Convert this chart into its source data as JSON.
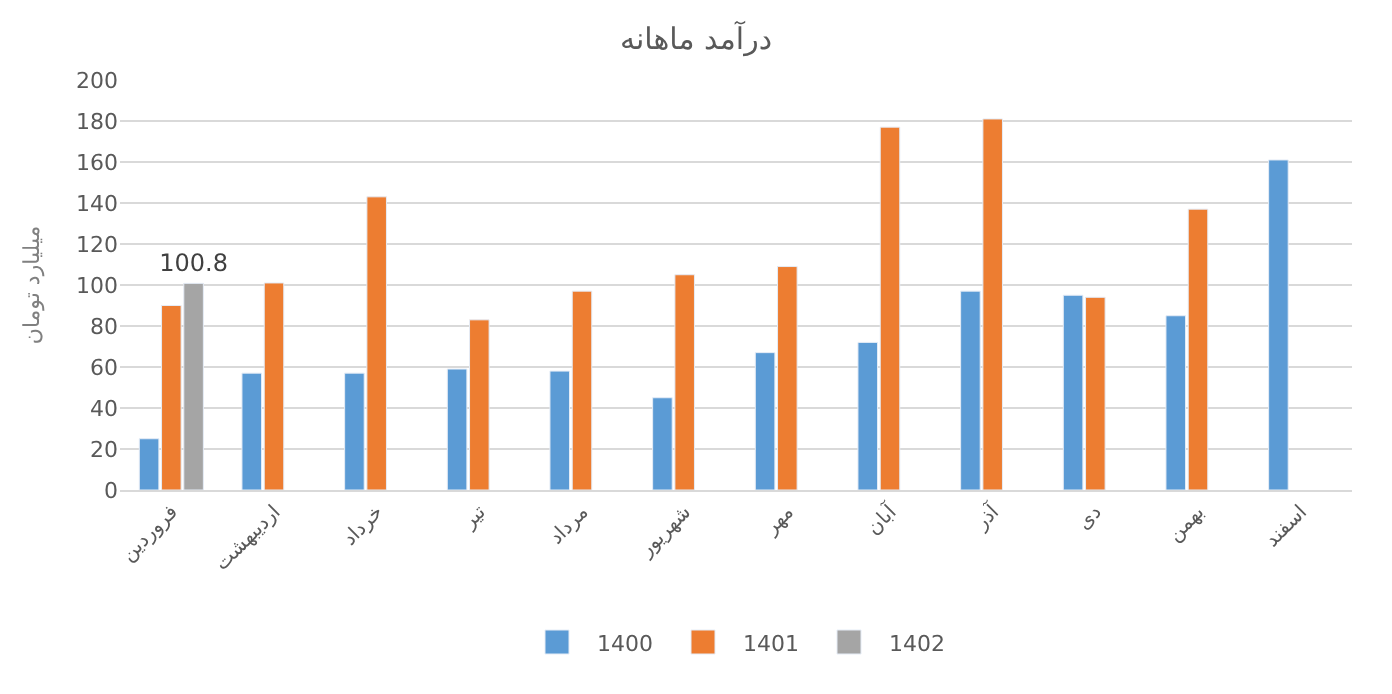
{
  "chart_data": {
    "type": "bar",
    "title": "درآمد ماهانه",
    "ylabel": "میلیارد تومان",
    "categories": [
      "فروردین",
      "اردیبهشت",
      "خرداد",
      "تیر",
      "مرداد",
      "شهریور",
      "مهر",
      "آبان",
      "آذر",
      "دی",
      "بهمن",
      "اسفند"
    ],
    "series": [
      {
        "name": "1400",
        "color": "#5b9bd5",
        "values": [
          25,
          57,
          57,
          59,
          58,
          45,
          67,
          72,
          97,
          95,
          85,
          161
        ]
      },
      {
        "name": "1401",
        "color": "#ed7d31",
        "values": [
          90,
          101,
          143,
          83,
          97,
          105,
          109,
          177,
          181,
          94,
          137,
          null
        ]
      },
      {
        "name": "1402",
        "color": "#a5a5a5",
        "values": [
          100.8,
          null,
          null,
          null,
          null,
          null,
          null,
          null,
          null,
          null,
          null,
          null
        ],
        "value_labels": [
          "100.8",
          null,
          null,
          null,
          null,
          null,
          null,
          null,
          null,
          null,
          null,
          null
        ]
      }
    ],
    "ylim": [
      0,
      200
    ],
    "yticks": [
      0,
      20,
      40,
      60,
      80,
      100,
      120,
      140,
      160,
      180,
      200
    ],
    "grid": "y",
    "legend": "bottom"
  }
}
